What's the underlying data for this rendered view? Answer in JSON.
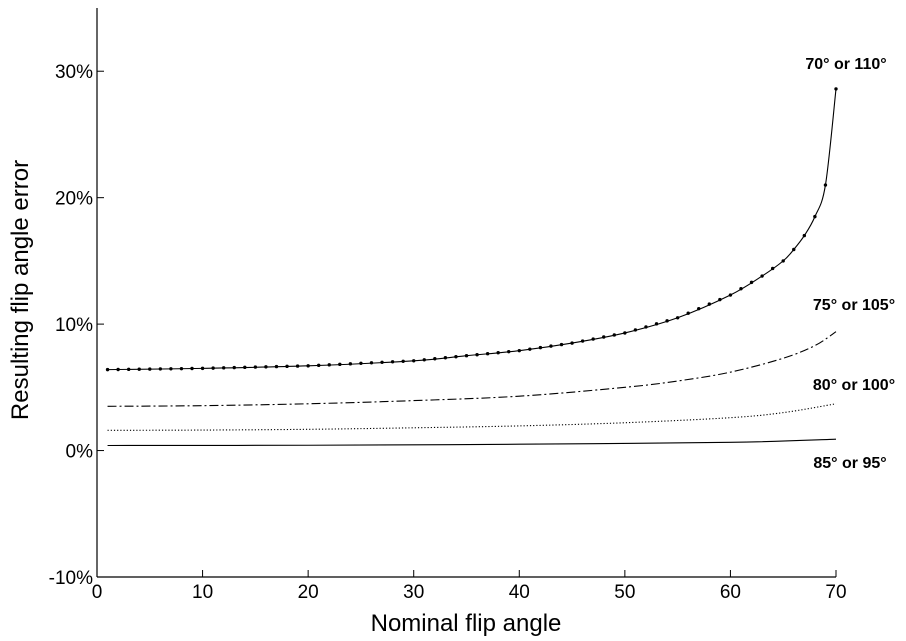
{
  "chart_data": {
    "type": "line",
    "title": "",
    "xlabel": "Nominal flip angle",
    "ylabel": "Resulting flip angle error",
    "xlim": [
      0,
      70
    ],
    "ylim": [
      -10,
      35
    ],
    "x_ticks": [
      "0",
      "10",
      "20",
      "30",
      "40",
      "50",
      "60",
      "70"
    ],
    "y_ticks": [
      "-10%",
      "0%",
      "10%",
      "20%",
      "30%"
    ],
    "y_tick_values": [
      -10,
      0,
      10,
      20,
      30
    ],
    "x_tick_values": [
      0,
      10,
      20,
      30,
      40,
      50,
      60,
      70
    ],
    "grid": false,
    "legend": "none",
    "series": [
      {
        "name": "70° or 110°",
        "style": "solid-dots",
        "x": [
          1,
          10,
          20,
          30,
          35,
          40,
          45,
          50,
          55,
          60,
          63,
          65,
          66,
          67,
          68,
          69,
          70
        ],
        "y": [
          6.4,
          6.5,
          6.7,
          7.1,
          7.5,
          7.9,
          8.5,
          9.3,
          10.5,
          12.3,
          13.8,
          15.0,
          15.9,
          17.0,
          18.5,
          21.0,
          28.6
        ]
      },
      {
        "name": "75° or 105°",
        "style": "dash-dot",
        "x": [
          1,
          10,
          20,
          30,
          40,
          50,
          55,
          60,
          65,
          68,
          70
        ],
        "y": [
          3.5,
          3.55,
          3.7,
          3.95,
          4.3,
          5.0,
          5.5,
          6.2,
          7.3,
          8.3,
          9.4
        ]
      },
      {
        "name": "80° or 100°",
        "style": "dotted",
        "x": [
          1,
          10,
          20,
          30,
          40,
          50,
          60,
          65,
          70
        ],
        "y": [
          1.6,
          1.62,
          1.68,
          1.8,
          1.95,
          2.2,
          2.6,
          3.0,
          3.7
        ]
      },
      {
        "name": "85° or 95°",
        "style": "solid",
        "x": [
          1,
          20,
          40,
          60,
          70
        ],
        "y": [
          0.4,
          0.42,
          0.5,
          0.65,
          0.9
        ]
      }
    ]
  }
}
